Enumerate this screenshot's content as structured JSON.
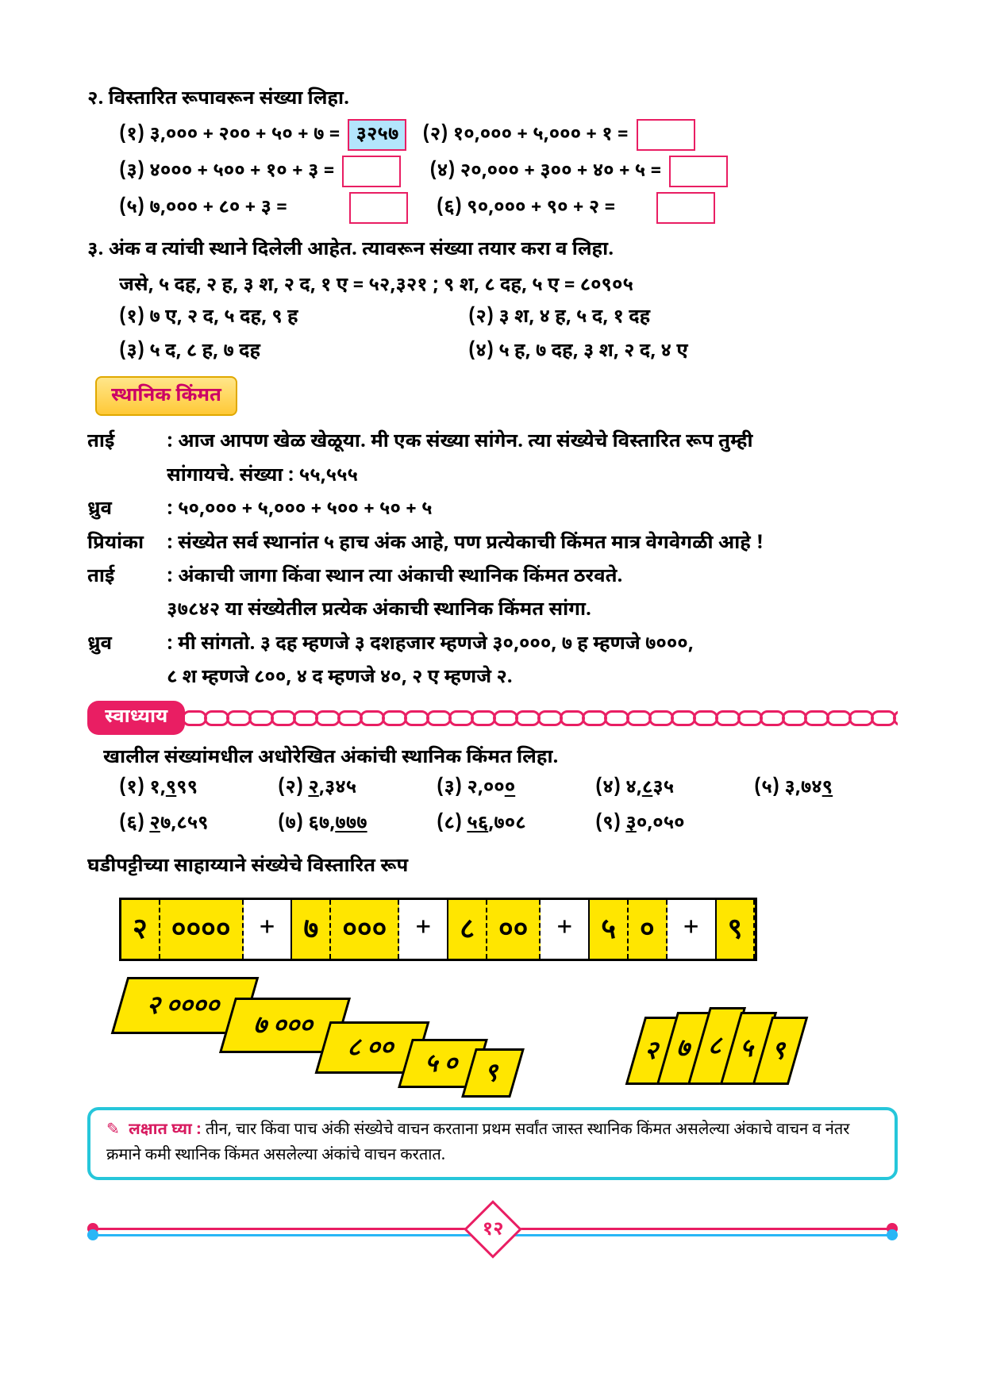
{
  "q2": {
    "title": "२. विस्तारित रूपावरून संख्या लिहा.",
    "items": [
      {
        "label": "(१)",
        "expr": "३,००० + २०० + ५० + ७ =",
        "ans": "३२५७",
        "filled": true
      },
      {
        "label": "(२)",
        "expr": "१०,००० + ५,००० + १ =",
        "ans": "",
        "filled": false
      },
      {
        "label": "(३)",
        "expr": "४००० + ५०० + १० + ३ =",
        "ans": "",
        "filled": false
      },
      {
        "label": "(४)",
        "expr": "२०,००० + ३०० + ४० + ५ =",
        "ans": "",
        "filled": false
      },
      {
        "label": "(५)",
        "expr": "७,००० + ८० + ३ =",
        "ans": "",
        "filled": false
      },
      {
        "label": "(६)",
        "expr": "९०,००० + ९० + २ =",
        "ans": "",
        "filled": false
      }
    ]
  },
  "q3": {
    "title": "३. अंक व त्यांची स्थाने दिलेली आहेत. त्यावरून संख्या तयार करा व लिहा.",
    "example": "जसे, ५ दह, २ ह, ३ श, २ द, १ ए = ५२,३२१   ;    ९ श, ८ दह, ५ ए = ८०९०५",
    "items": [
      "(१) ७ ए, २ द, ५ दह, ९ ह",
      "(२) ३ श, ४ ह, ५ द, १ दह",
      "(३) ५ द, ८ ह, ७ दह",
      "(४) ५ ह, ७ दह, ३ श, २ द, ४ ए"
    ]
  },
  "section_label": "स्थानिक किंमत",
  "dialog": [
    {
      "sp": "ताई",
      "lines": [
        "आज आपण खेळ खेळूया. मी एक संख्या सांगेन. त्या संख्येचे विस्तारित रूप तुम्ही",
        "सांगायचे. संख्या :  ५५,५५५"
      ]
    },
    {
      "sp": "ध्रुव",
      "lines": [
        "५०,००० + ५,००० + ५०० + ५० + ५"
      ]
    },
    {
      "sp": "प्रियांका",
      "lines": [
        "संख्येत सर्व स्थानांत ५ हाच अंक आहे, पण प्रत्येकाची किंमत मात्र वेगवेगळी आहे !"
      ]
    },
    {
      "sp": "ताई",
      "lines": [
        "अंकाची जागा किंवा स्थान त्या अंकाची स्थानिक किंमत ठरवते.",
        "   ३७८४२ या संख्येतील प्रत्येक अंकाची स्थानिक किंमत सांगा."
      ]
    },
    {
      "sp": "ध्रुव",
      "lines": [
        "मी सांगतो. ३ दह म्हणजे ३ दशहजार म्हणजे ३०,०००,  ७ ह म्हणजे ७०००,",
        "८ श म्हणजे ८००,   ४ द म्हणजे ४०,   २ ए म्हणजे २."
      ]
    }
  ],
  "exercise_label": "स्वाध्याय",
  "exercise_title": "खालील संख्यांमधील अधोरेखित अंकांची स्थानिक किंमत लिहा.",
  "exercises": [
    {
      "n": "(१)",
      "pre": "१,",
      "u": "९",
      "post": "९९"
    },
    {
      "n": "(२)",
      "pre": "",
      "u": "२",
      "post": ",३४५"
    },
    {
      "n": "(३)",
      "pre": "२,००",
      "u": "०",
      "post": ""
    },
    {
      "n": "(४)",
      "pre": "४,",
      "u": "८",
      "post": "३५"
    },
    {
      "n": "(५)",
      "pre": "३,७४",
      "u": "९",
      "post": ""
    },
    {
      "n": "(६)",
      "pre": "",
      "u": "२",
      "post": "७,८५९"
    },
    {
      "n": "(७)",
      "pre": "६७,",
      "u": "७७७",
      "post": ""
    },
    {
      "n": "(८)",
      "pre": "",
      "u": "५६",
      "post": ",७०८"
    },
    {
      "n": "(९)",
      "pre": "",
      "u": "३",
      "post": "०,०५०"
    }
  ],
  "strip_title": "घडीपट्टीच्या साहाय्याने संख्येचे विस्तारित रूप",
  "strip_cells": [
    "२",
    "००००",
    "+",
    "७",
    "०००",
    "+",
    "८",
    "००",
    "+",
    "५",
    "०",
    "+",
    "९"
  ],
  "note": {
    "label": "लक्षात घ्या :",
    "text": "तीन, चार किंवा पाच अंकी संख्येचे वाचन करताना प्रथम सर्वांत जास्त स्थानिक किंमत असलेल्या अंकाचे वाचन व नंतर क्रमाने कमी स्थानिक किंमत असलेल्या अंकांचे  वाचन करतात."
  },
  "page_number": "१२",
  "colors": {
    "pink": "#e91e63",
    "blue": "#29b6f6",
    "yellow": "#ffe600",
    "cyan": "#26c6da",
    "lightblue": "#b3e5fc"
  }
}
